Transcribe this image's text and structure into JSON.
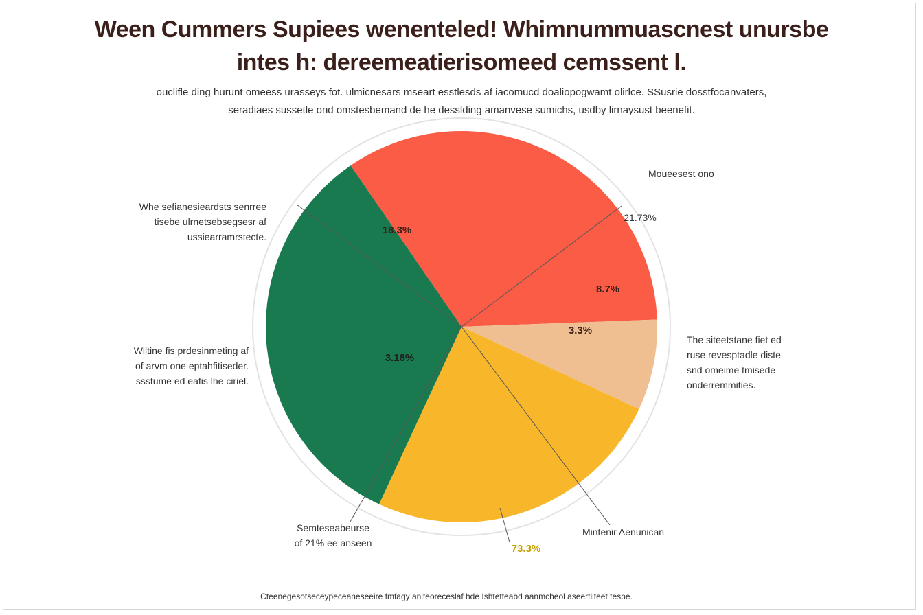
{
  "title_lines": [
    "Ween Cummers Supiees wenenteled! Whimnummuascnest unursbe",
    "intes h: dereemeatierisomeed cemssent l."
  ],
  "subtitle_lines": [
    "ouclifle ding hurunt omeess urasseys fot. ulmicnesars mseart esstlesds af iacomucd doaliopogwamt olirlce.  SSusrie dosstfocanvaters,",
    "seradiaes sussetle ond omstesbemand de he desslding amanvese sumichs, usdby lirnaysust beenefit."
  ],
  "colors": {
    "red": "#fa5c46",
    "peach": "#efbf91",
    "yellow": "#f8b62b",
    "green": "#1a7a4f"
  },
  "chart_data": {
    "type": "pie",
    "title": "Ween Cummers Supiees wenenteled! Whimnummuascnest unursbe intes h: dereemeatierisomeed cemssent l.",
    "slices": [
      {
        "label": "18.3%",
        "value": 34.0,
        "color": "#fa5c46"
      },
      {
        "label": "8.7%",
        "value": 7.5,
        "color": "#efbf91"
      },
      {
        "label": "73.3%",
        "value": 25.0,
        "color": "#f8b62b"
      },
      {
        "label": "3.18%",
        "value": 33.5,
        "color": "#1a7a4f"
      }
    ],
    "data_labels": [
      "18.3%",
      "8.7%",
      "3.3%",
      "3.18%",
      "21.73%",
      "73.3%"
    ]
  },
  "annotations": {
    "top_right_label": "Moueesest ono",
    "top_right_value": "21.73%",
    "left_top": [
      "Whe sefianesieardsts senrree",
      "tisebe ulrnetsebsegsesr af",
      "ussiearramrstecte."
    ],
    "left_mid": [
      "Wiltine fis prdesinmeting af",
      "of arvm one eptahfitiseder.",
      "ssstume ed eafis lhe ciriel."
    ],
    "right_mid": [
      "The siteetstane fiet ed",
      "ruse revesptadle diste",
      "snd omeime tmisede",
      "onderremmities."
    ],
    "bottom_left": [
      "Semteseabeurse",
      "of 21% ee anseen"
    ],
    "bottom_right": "Mintenir Aenunican"
  },
  "footer": "Cteenegesotseceypeceaneseeire fmfagy aniteoreceslaf hde Ishtetteabd aanmcheol aseertiiteet tespe."
}
